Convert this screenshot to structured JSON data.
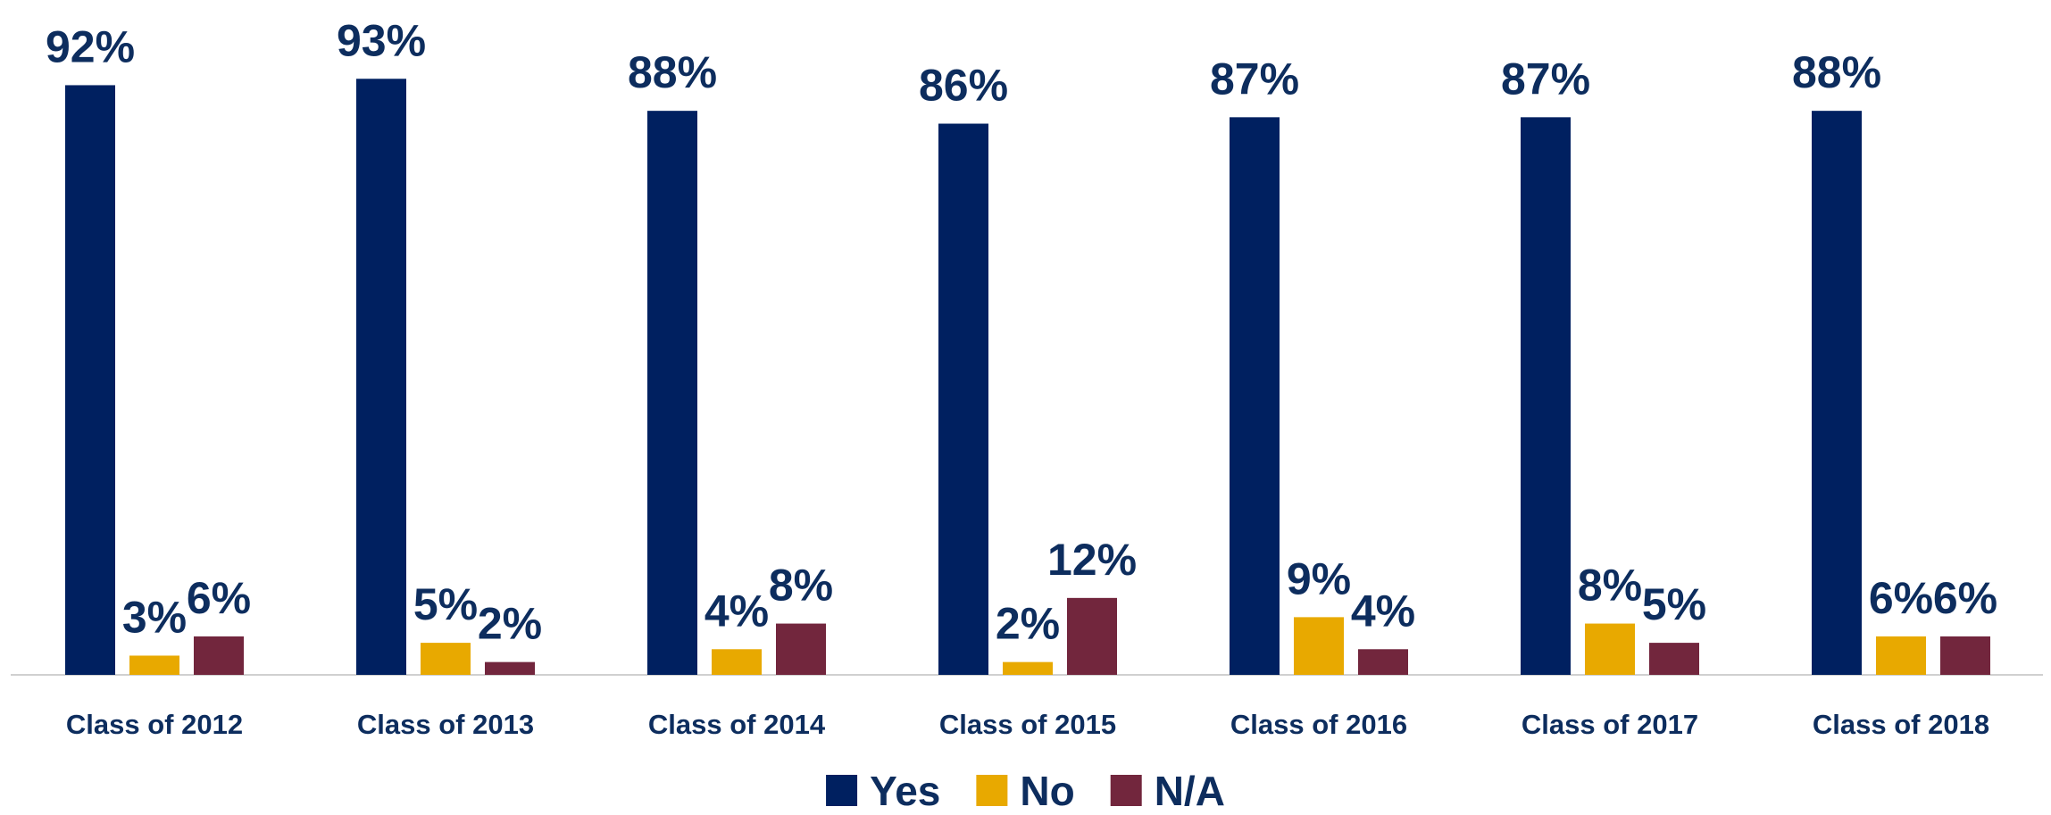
{
  "chart_data": {
    "type": "bar",
    "categories": [
      "Class of 2012",
      "Class of 2013",
      "Class of 2014",
      "Class of 2015",
      "Class of 2016",
      "Class of 2017",
      "Class of 2018"
    ],
    "series": [
      {
        "name": "Yes",
        "color": "#002060",
        "values": [
          92,
          93,
          88,
          86,
          87,
          87,
          88
        ],
        "value_labels": [
          "92%",
          "93%",
          "88%",
          "86%",
          "87%",
          "87%",
          "88%"
        ]
      },
      {
        "name": "No",
        "color": "#e8a900",
        "values": [
          3,
          5,
          4,
          2,
          9,
          8,
          6
        ],
        "value_labels": [
          "3%",
          "5%",
          "4%",
          "2%",
          "9%",
          "8%",
          "6%"
        ]
      },
      {
        "name": "N/A",
        "color": "#72263d",
        "values": [
          6,
          2,
          8,
          12,
          4,
          5,
          6
        ],
        "value_labels": [
          "6%",
          "2%",
          "8%",
          "12%",
          "4%",
          "5%",
          "6%"
        ]
      }
    ],
    "ylim": [
      0,
      100
    ],
    "legend": "bottom"
  }
}
